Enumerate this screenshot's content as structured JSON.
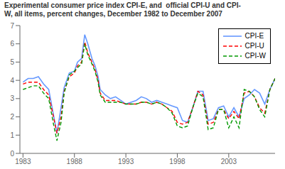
{
  "chart_data": {
    "type": "line",
    "title": "Experimental consumer price index CPI-E, and  official CPI-U and CPI-\nW, all items, percent changes, December 1982 to December 2007",
    "x": [
      1983,
      1983.5,
      1984,
      1984.5,
      1985,
      1985.5,
      1986,
      1986.3,
      1986.7,
      1987,
      1987.5,
      1988,
      1988.3,
      1988.7,
      1989,
      1989.3,
      1989.7,
      1990,
      1990.3,
      1990.5,
      1991,
      1991.5,
      1992,
      1992.5,
      1993,
      1993.5,
      1994,
      1994.5,
      1995,
      1995.5,
      1996,
      1996.5,
      1997,
      1997.5,
      1998,
      1998.5,
      1999,
      1999.5,
      2000,
      2000.5,
      2001,
      2001.5,
      2002,
      2002.5,
      2003,
      2003.5,
      2004,
      2004.5,
      2005,
      2005.5,
      2006,
      2006.5,
      2007,
      2007.5
    ],
    "series": [
      {
        "name": "CPI-E",
        "color": "#6699FF",
        "line_style": "solid",
        "values": [
          3.9,
          4.1,
          4.1,
          4.2,
          3.8,
          3.5,
          2.0,
          1.1,
          2.5,
          3.6,
          4.4,
          4.5,
          5.0,
          5.2,
          6.5,
          6.0,
          5.2,
          4.8,
          4.2,
          3.5,
          3.2,
          3.0,
          3.1,
          2.9,
          2.7,
          2.8,
          2.9,
          3.1,
          3.0,
          2.8,
          2.9,
          2.8,
          2.7,
          2.6,
          2.5,
          1.8,
          1.7,
          2.5,
          3.4,
          3.4,
          1.8,
          1.9,
          2.5,
          2.6,
          2.0,
          2.5,
          2.0,
          3.0,
          3.2,
          3.5,
          3.3,
          2.7,
          3.5,
          4.1
        ]
      },
      {
        "name": "CPI-U",
        "color": "#FF0000",
        "line_style": "dashed",
        "values": [
          3.8,
          3.9,
          3.9,
          3.9,
          3.5,
          3.2,
          1.9,
          1.1,
          2.0,
          3.4,
          4.2,
          4.4,
          4.8,
          5.0,
          6.1,
          5.5,
          5.0,
          4.6,
          4.0,
          3.3,
          2.9,
          2.9,
          2.9,
          2.8,
          2.7,
          2.7,
          2.7,
          2.8,
          2.8,
          2.7,
          2.8,
          2.7,
          2.5,
          2.3,
          1.7,
          1.6,
          1.7,
          2.5,
          3.4,
          3.2,
          1.6,
          1.7,
          2.4,
          2.4,
          1.9,
          2.3,
          1.9,
          3.3,
          3.4,
          3.1,
          2.5,
          2.2,
          3.5,
          4.1
        ]
      },
      {
        "name": "CPI-W",
        "color": "#009900",
        "line_style": "dashed",
        "values": [
          3.5,
          3.6,
          3.7,
          3.7,
          3.3,
          3.0,
          1.5,
          0.7,
          1.7,
          3.3,
          4.3,
          4.5,
          4.7,
          4.9,
          6.0,
          5.4,
          4.9,
          4.5,
          3.9,
          3.2,
          2.8,
          2.8,
          2.8,
          2.8,
          2.7,
          2.7,
          2.7,
          2.8,
          2.8,
          2.7,
          2.8,
          2.7,
          2.5,
          2.2,
          1.5,
          1.4,
          1.5,
          2.5,
          3.3,
          3.1,
          1.3,
          1.4,
          2.4,
          2.4,
          1.4,
          2.0,
          1.4,
          3.5,
          3.4,
          3.1,
          2.4,
          2.0,
          3.5,
          4.1
        ]
      }
    ],
    "xlim": [
      1982.7,
      2007.5
    ],
    "xticks": [
      1983,
      1988,
      1993,
      1998,
      2003
    ],
    "ylim": [
      0,
      7
    ],
    "yticks": [
      0,
      1,
      2,
      3,
      4,
      5,
      6,
      7
    ],
    "grid": false,
    "legend": "upper right"
  }
}
